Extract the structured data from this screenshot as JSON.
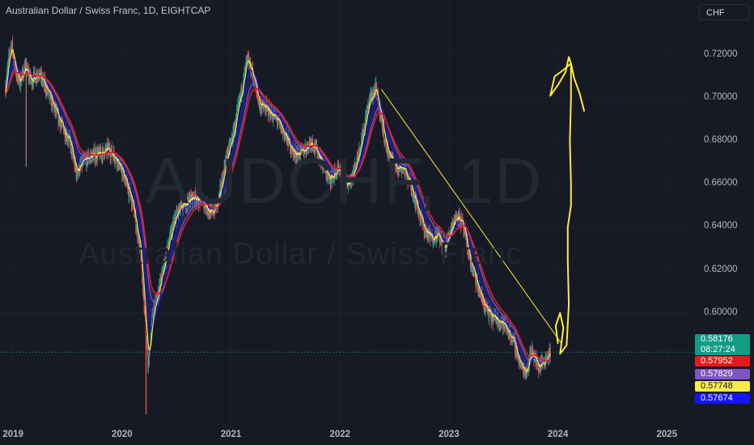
{
  "header": {
    "title": "Australian Dollar / Swiss Franc, 1D, EIGHTCAP",
    "currency": "CHF"
  },
  "watermark": {
    "symbol": "AUDCHF, 1D",
    "name": "Australian Dollar / Swiss Franc"
  },
  "price_badges": {
    "last_price": "0.58176",
    "countdown": "08:27:24",
    "ma_red": "0.57952",
    "ma_purple": "0.57829",
    "ma_yellow": "0.57748",
    "ma_blue": "0.57674"
  },
  "colors": {
    "background": "#161a25",
    "ma_red": "#e5191c",
    "ma_purple": "#7e57c2",
    "ma_yellow": "#f7ec4b",
    "ma_blue": "#1414ff",
    "drawing": "#ffeb3b",
    "candle_up": "#26a69a",
    "candle_down": "#ef5350"
  },
  "chart_data": {
    "type": "candlestick",
    "symbol": "AUDCHF",
    "timeframe": "1D",
    "exchange": "EIGHTCAP",
    "y_ticks": [
      "0.72000",
      "0.70000",
      "0.68000",
      "0.66000",
      "0.64000",
      "0.62000",
      "0.60000"
    ],
    "x_ticks": [
      "2019",
      "2020",
      "2021",
      "2022",
      "2023",
      "2024",
      "2025"
    ],
    "ylim": [
      0.548,
      0.735
    ],
    "xlim": [
      2018.88,
      2025.25
    ],
    "x_tick_values": [
      2019,
      2020,
      2021,
      2022,
      2023,
      2024,
      2025
    ],
    "y_tick_values": [
      0.72,
      0.7,
      0.68,
      0.66,
      0.64,
      0.62,
      0.6
    ],
    "price_path": [
      [
        2018.93,
        0.705
      ],
      [
        2018.97,
        0.722
      ],
      [
        2018.99,
        0.725
      ],
      [
        2019.02,
        0.713
      ],
      [
        2019.06,
        0.707
      ],
      [
        2019.11,
        0.714
      ],
      [
        2019.17,
        0.708
      ],
      [
        2019.23,
        0.712
      ],
      [
        2019.3,
        0.705
      ],
      [
        2019.37,
        0.696
      ],
      [
        2019.44,
        0.688
      ],
      [
        2019.52,
        0.68
      ],
      [
        2019.58,
        0.665
      ],
      [
        2019.64,
        0.67
      ],
      [
        2019.72,
        0.673
      ],
      [
        2019.8,
        0.674
      ],
      [
        2019.88,
        0.676
      ],
      [
        2019.95,
        0.672
      ],
      [
        2020.03,
        0.662
      ],
      [
        2020.1,
        0.65
      ],
      [
        2020.17,
        0.628
      ],
      [
        2020.22,
        0.59
      ],
      [
        2020.24,
        0.575
      ],
      [
        2020.28,
        0.6
      ],
      [
        2020.35,
        0.614
      ],
      [
        2020.43,
        0.633
      ],
      [
        2020.5,
        0.646
      ],
      [
        2020.58,
        0.651
      ],
      [
        2020.66,
        0.654
      ],
      [
        2020.74,
        0.652
      ],
      [
        2020.82,
        0.646
      ],
      [
        2020.88,
        0.651
      ],
      [
        2020.95,
        0.67
      ],
      [
        2021.03,
        0.685
      ],
      [
        2021.09,
        0.702
      ],
      [
        2021.15,
        0.718
      ],
      [
        2021.2,
        0.711
      ],
      [
        2021.26,
        0.697
      ],
      [
        2021.33,
        0.695
      ],
      [
        2021.42,
        0.69
      ],
      [
        2021.5,
        0.682
      ],
      [
        2021.58,
        0.674
      ],
      [
        2021.66,
        0.675
      ],
      [
        2021.74,
        0.68
      ],
      [
        2021.82,
        0.672
      ],
      [
        2021.9,
        0.662
      ],
      [
        2021.98,
        0.666
      ],
      [
        2022.06,
        0.659
      ],
      [
        2022.13,
        0.666
      ],
      [
        2022.2,
        0.681
      ],
      [
        2022.27,
        0.699
      ],
      [
        2022.33,
        0.704
      ],
      [
        2022.38,
        0.69
      ],
      [
        2022.43,
        0.676
      ],
      [
        2022.5,
        0.668
      ],
      [
        2022.58,
        0.668
      ],
      [
        2022.66,
        0.658
      ],
      [
        2022.72,
        0.648
      ],
      [
        2022.78,
        0.638
      ],
      [
        2022.84,
        0.635
      ],
      [
        2022.9,
        0.637
      ],
      [
        2022.96,
        0.629
      ],
      [
        2023.02,
        0.64
      ],
      [
        2023.08,
        0.646
      ],
      [
        2023.13,
        0.64
      ],
      [
        2023.2,
        0.623
      ],
      [
        2023.27,
        0.611
      ],
      [
        2023.33,
        0.603
      ],
      [
        2023.39,
        0.598
      ],
      [
        2023.46,
        0.597
      ],
      [
        2023.53,
        0.593
      ],
      [
        2023.6,
        0.586
      ],
      [
        2023.66,
        0.575
      ],
      [
        2023.71,
        0.573
      ],
      [
        2023.76,
        0.583
      ],
      [
        2023.82,
        0.575
      ],
      [
        2023.88,
        0.578
      ],
      [
        2023.93,
        0.582
      ]
    ],
    "moving_averages": [
      {
        "color": "#e5191c",
        "last_value": 0.57952
      },
      {
        "color": "#7e57c2",
        "last_value": 0.57829
      },
      {
        "color": "#f7ec4b",
        "last_value": 0.57748
      },
      {
        "color": "#1414ff",
        "last_value": 0.57674
      }
    ],
    "trendline": {
      "from": [
        2022.38,
        0.704
      ],
      "to": [
        2024.03,
        0.586
      ]
    },
    "annotation": "hand-drawn yellow upward arrow from ~0.585 to ~0.718 around 2024",
    "last_price": 0.58176,
    "grid": true
  }
}
